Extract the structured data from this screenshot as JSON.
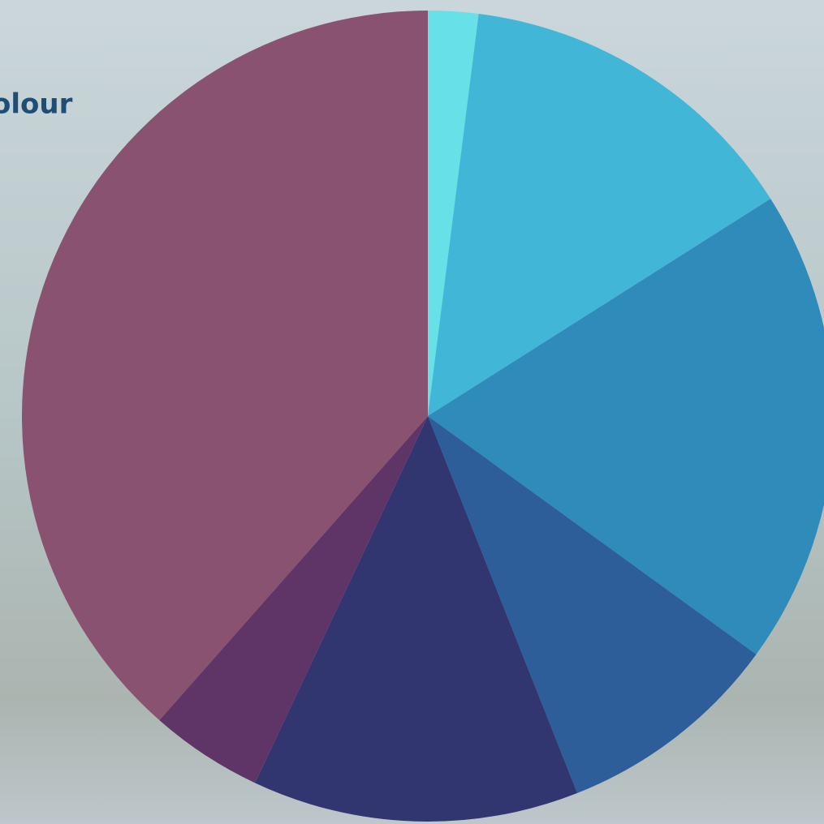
{
  "chart_data": {
    "type": "pie",
    "title": "olour",
    "values": [
      2,
      14,
      19,
      9,
      13,
      4.5,
      38.5
    ],
    "colors": [
      "#68e0e8",
      "#42b6d6",
      "#2e8bba",
      "#2e5e99",
      "#313570",
      "#5e3566",
      "#895271"
    ],
    "start_angle": 0,
    "direction": "clockwise"
  }
}
